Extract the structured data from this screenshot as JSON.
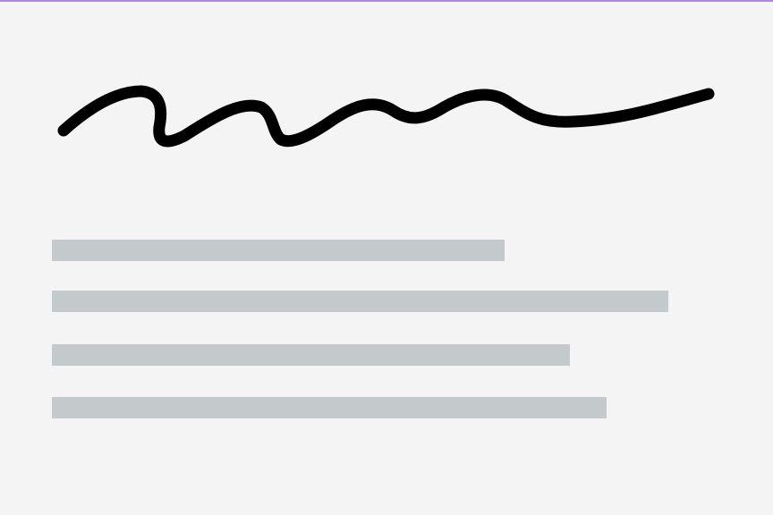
{
  "signature": {
    "icon": "handwritten-signature-scribble",
    "stroke_color": "#000000"
  },
  "placeholder_lines": {
    "color": "#c4cacb",
    "count": 4
  },
  "colors": {
    "background": "#f4f4f4",
    "top_border": "#a98bd8"
  }
}
